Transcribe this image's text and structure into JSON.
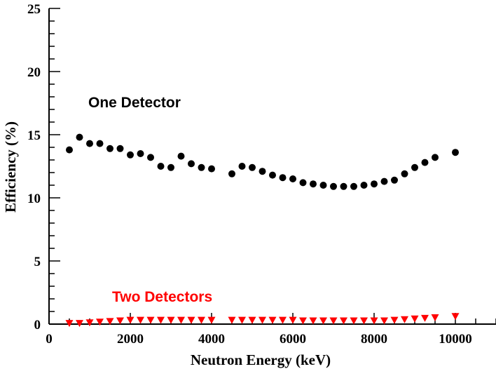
{
  "chart_data": {
    "type": "scatter",
    "xlabel": "Neutron Energy (keV)",
    "ylabel": "Efficiency (%)",
    "xlim": [
      0,
      11000
    ],
    "ylim": [
      0,
      25
    ],
    "x_ticks": [
      0,
      2000,
      4000,
      6000,
      8000,
      10000
    ],
    "x_tick_labels": [
      "0",
      "2000",
      "4000",
      "6000",
      "8000",
      "10000"
    ],
    "y_ticks": [
      0,
      5,
      10,
      15,
      20,
      25
    ],
    "y_tick_labels": [
      "0",
      "5",
      "10",
      "15",
      "20",
      "25"
    ],
    "grid": false,
    "annotations": [
      {
        "text": "One Detector",
        "color": "#000000"
      },
      {
        "text": "Two Detectors",
        "color": "#ff0000"
      }
    ],
    "series": [
      {
        "marker": "circle",
        "color": "#000000",
        "x": [
          500,
          750,
          1000,
          1250,
          1500,
          1750,
          2000,
          2250,
          2500,
          2750,
          3000,
          3250,
          3500,
          3750,
          4000,
          4500,
          4750,
          5000,
          5250,
          5500,
          5750,
          6000,
          6250,
          6500,
          6750,
          7000,
          7250,
          7500,
          7750,
          8000,
          8250,
          8500,
          8750,
          9000,
          9250,
          9500,
          10000
        ],
        "y": [
          13.8,
          14.8,
          14.3,
          14.3,
          13.9,
          13.9,
          13.4,
          13.5,
          13.2,
          12.5,
          12.4,
          13.3,
          12.7,
          12.4,
          12.3,
          11.9,
          12.5,
          12.4,
          12.1,
          11.8,
          11.6,
          11.5,
          11.2,
          11.1,
          11.0,
          10.9,
          10.9,
          10.9,
          11.0,
          11.1,
          11.3,
          11.4,
          11.9,
          12.4,
          12.8,
          13.2,
          13.6
        ]
      },
      {
        "marker": "triangle-down",
        "color": "#ff0000",
        "x": [
          500,
          750,
          1000,
          1250,
          1500,
          1750,
          2000,
          2250,
          2500,
          2750,
          3000,
          3250,
          3500,
          3750,
          4000,
          4500,
          4750,
          5000,
          5250,
          5500,
          5750,
          6000,
          6250,
          6500,
          6750,
          7000,
          7250,
          7500,
          7750,
          8000,
          8250,
          8500,
          8750,
          9000,
          9250,
          9500,
          10000
        ],
        "y": [
          0.05,
          0.05,
          0.1,
          0.15,
          0.2,
          0.25,
          0.3,
          0.3,
          0.3,
          0.3,
          0.3,
          0.3,
          0.3,
          0.3,
          0.3,
          0.3,
          0.3,
          0.3,
          0.3,
          0.3,
          0.3,
          0.3,
          0.25,
          0.25,
          0.25,
          0.25,
          0.25,
          0.25,
          0.25,
          0.25,
          0.25,
          0.3,
          0.35,
          0.4,
          0.45,
          0.5,
          0.6
        ]
      }
    ]
  }
}
